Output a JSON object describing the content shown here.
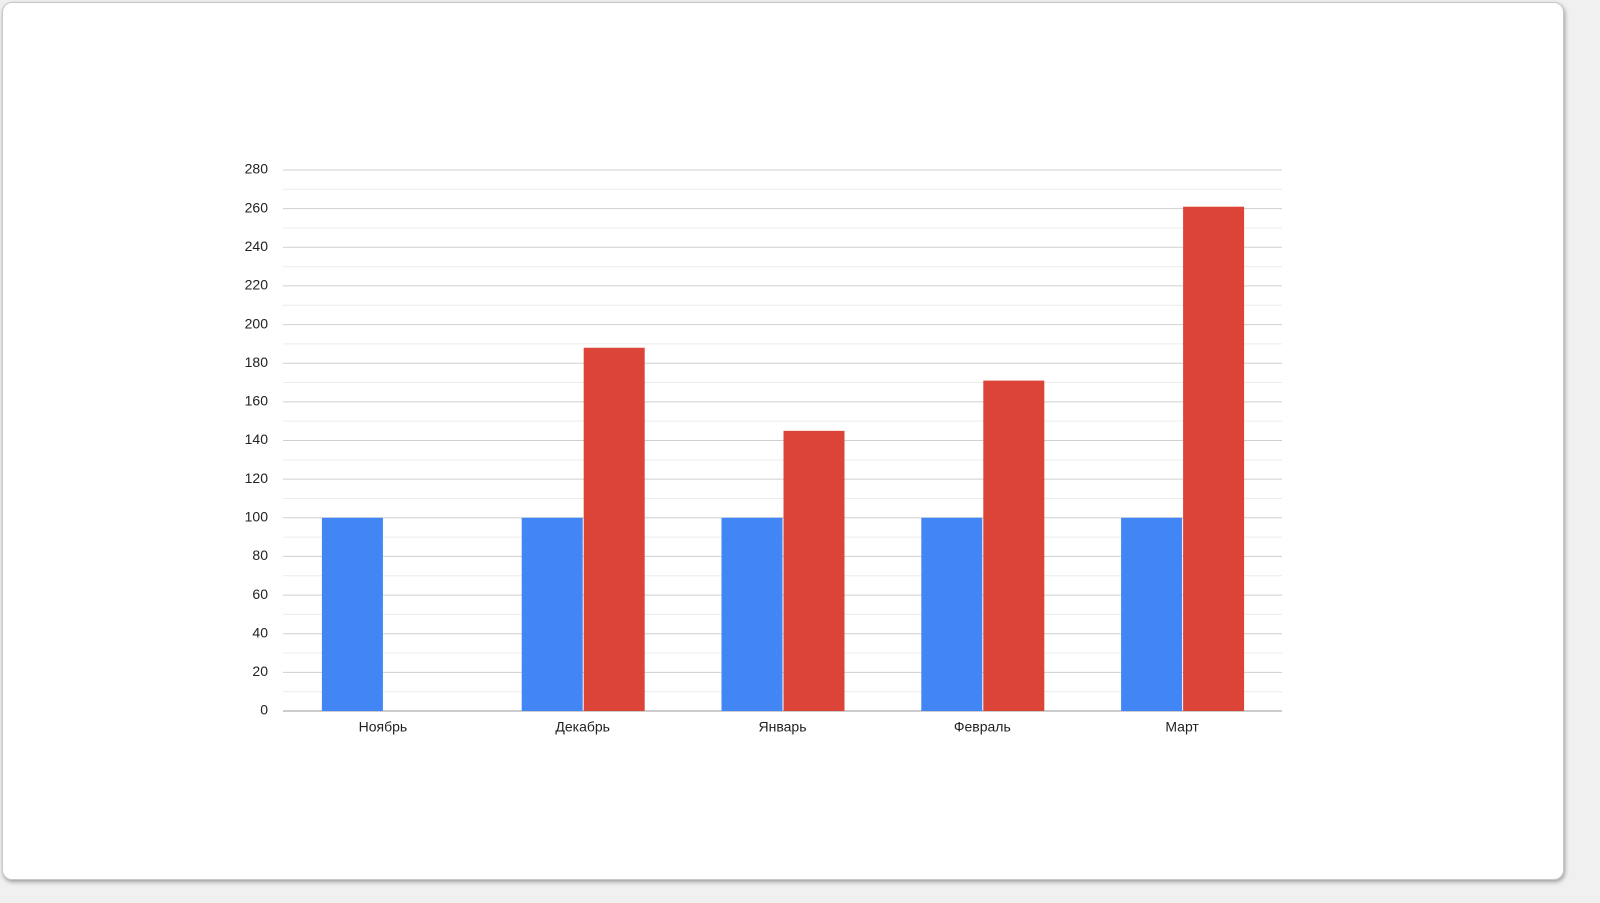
{
  "chart_data": {
    "type": "bar",
    "categories": [
      "Ноябрь",
      "Декабрь",
      "Январь",
      "Февраль",
      "Март"
    ],
    "series": [
      {
        "color": "#4285f4",
        "values": [
          100,
          100,
          100,
          100,
          100
        ]
      },
      {
        "color": "#db4437",
        "values": [
          null,
          188,
          145,
          171,
          261
        ]
      }
    ],
    "ylim": [
      0,
      280
    ],
    "yticks": [
      0,
      20,
      40,
      60,
      80,
      100,
      120,
      140,
      160,
      180,
      200,
      220,
      240,
      260,
      280
    ],
    "grid": true,
    "minor_grid": true
  }
}
